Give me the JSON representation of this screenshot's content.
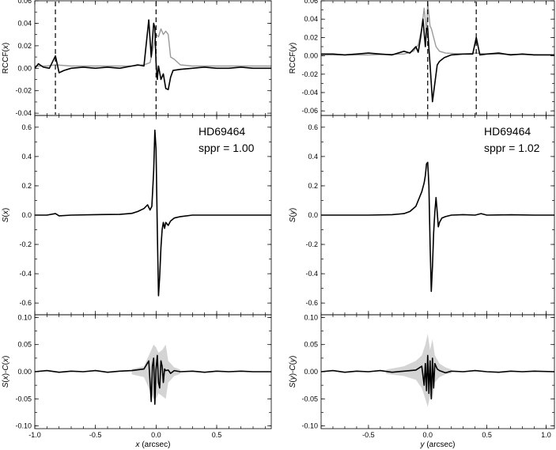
{
  "colors": {
    "primary": "#000000",
    "reference": "#9a9a9a",
    "band": "#d4d4d4"
  },
  "chart_data": [
    {
      "type": "line",
      "panel": "top-left",
      "xlabel": "",
      "ylabel": "RCCF(x)",
      "xlim": [
        -1.0,
        0.95
      ],
      "ylim": [
        -0.042,
        0.06
      ],
      "yticks": [
        "-0.04",
        "-0.02",
        "0.00",
        "0.02",
        "0.04",
        "0.06"
      ],
      "xticks": [],
      "vlines": [
        -0.83,
        0.0
      ],
      "series": [
        {
          "style": "reference",
          "x": [
            -1.0,
            -0.9,
            -0.83,
            -0.7,
            -0.4,
            -0.2,
            -0.1,
            -0.05,
            -0.02,
            0.0,
            0.02,
            0.04,
            0.06,
            0.08,
            0.1,
            0.12,
            0.15,
            0.2,
            0.3,
            0.5,
            0.95
          ],
          "y": [
            0.002,
            0.002,
            0.003,
            0.002,
            0.002,
            0.002,
            0.003,
            0.005,
            0.02,
            0.03,
            0.028,
            0.035,
            0.03,
            0.033,
            0.03,
            0.01,
            0.008,
            0.003,
            0.002,
            0.002,
            0.002
          ]
        },
        {
          "style": "primary",
          "x": [
            -1.0,
            -0.97,
            -0.93,
            -0.88,
            -0.83,
            -0.8,
            -0.76,
            -0.7,
            -0.6,
            -0.5,
            -0.4,
            -0.3,
            -0.2,
            -0.15,
            -0.1,
            -0.06,
            -0.04,
            -0.02,
            -0.01,
            0.0,
            0.01,
            0.02,
            0.04,
            0.06,
            0.08,
            0.1,
            0.12,
            0.14,
            0.2,
            0.3,
            0.4,
            0.5,
            0.6,
            0.7,
            0.8,
            0.95
          ],
          "y": [
            0.0,
            0.004,
            0.001,
            0.0,
            0.011,
            -0.004,
            -0.002,
            0.0,
            0.001,
            0.0,
            0.001,
            0.0,
            0.002,
            0.003,
            0.002,
            0.043,
            0.01,
            0.04,
            0.036,
            0.005,
            -0.01,
            0.002,
            -0.01,
            -0.005,
            -0.018,
            -0.019,
            -0.008,
            -0.002,
            -0.001,
            0.0,
            0.001,
            0.0,
            0.0,
            0.001,
            0.0,
            0.0
          ]
        }
      ]
    },
    {
      "type": "line",
      "panel": "top-right",
      "xlabel": "",
      "ylabel": "RCCF(y)",
      "xlim": [
        -0.9,
        1.07
      ],
      "ylim": [
        -0.065,
        0.06
      ],
      "yticks": [
        "-0.06",
        "-0.04",
        "-0.02",
        "0.00",
        "0.02",
        "0.04",
        "0.06"
      ],
      "xticks": [],
      "vlines": [
        0.0,
        0.41
      ],
      "series": [
        {
          "style": "reference",
          "x": [
            -0.9,
            -0.5,
            -0.2,
            -0.12,
            -0.08,
            -0.05,
            -0.03,
            -0.01,
            0.0,
            0.02,
            0.03,
            0.05,
            0.07,
            0.1,
            0.15,
            0.3,
            0.41,
            0.5,
            1.07
          ],
          "y": [
            0.001,
            0.001,
            0.002,
            0.005,
            0.012,
            0.03,
            0.052,
            0.025,
            0.058,
            0.032,
            0.03,
            0.02,
            0.01,
            0.005,
            0.003,
            0.002,
            0.003,
            0.002,
            0.001
          ]
        },
        {
          "style": "primary",
          "x": [
            -0.9,
            -0.8,
            -0.7,
            -0.6,
            -0.5,
            -0.4,
            -0.3,
            -0.2,
            -0.15,
            -0.1,
            -0.08,
            -0.06,
            -0.04,
            -0.02,
            -0.01,
            0.0,
            0.01,
            0.02,
            0.04,
            0.06,
            0.08,
            0.1,
            0.14,
            0.2,
            0.3,
            0.38,
            0.41,
            0.44,
            0.5,
            0.6,
            0.7,
            0.8,
            0.9,
            1.07
          ],
          "y": [
            0.002,
            0.002,
            0.001,
            0.002,
            0.003,
            0.002,
            0.001,
            0.005,
            0.003,
            0.01,
            0.004,
            0.02,
            0.04,
            0.01,
            0.03,
            0.03,
            0.008,
            -0.01,
            -0.05,
            -0.03,
            -0.01,
            -0.006,
            -0.002,
            0.001,
            0.002,
            0.002,
            0.02,
            0.001,
            0.002,
            0.003,
            0.001,
            0.002,
            0.001,
            0.001
          ]
        }
      ]
    },
    {
      "type": "line",
      "panel": "middle-left",
      "xlabel": "",
      "ylabel": "S(x)",
      "xlim": [
        -1.0,
        0.95
      ],
      "ylim": [
        -0.68,
        0.68
      ],
      "yticks": [
        "-0.6",
        "-0.4",
        "-0.2",
        "0.0",
        "0.2",
        "0.4",
        "0.6"
      ],
      "xticks": [],
      "annotation": [
        "HD69464",
        "sppr = 1.00"
      ],
      "series": [
        {
          "style": "primary",
          "x": [
            -1.0,
            -0.9,
            -0.83,
            -0.8,
            -0.7,
            -0.5,
            -0.3,
            -0.2,
            -0.15,
            -0.1,
            -0.07,
            -0.05,
            -0.035,
            -0.02,
            -0.01,
            0.0,
            0.01,
            0.02,
            0.03,
            0.04,
            0.05,
            0.06,
            0.07,
            0.08,
            0.1,
            0.12,
            0.15,
            0.2,
            0.3,
            0.5,
            0.7,
            0.95
          ],
          "y": [
            0.0,
            0.0,
            0.01,
            -0.005,
            0.0,
            0.003,
            0.005,
            0.012,
            0.025,
            0.045,
            0.07,
            0.035,
            0.06,
            0.3,
            0.58,
            0.45,
            -0.1,
            -0.55,
            -0.42,
            -0.22,
            -0.1,
            -0.05,
            -0.09,
            -0.05,
            -0.07,
            -0.04,
            -0.02,
            -0.01,
            0.0,
            0.0,
            0.0,
            0.0
          ]
        }
      ]
    },
    {
      "type": "line",
      "panel": "middle-right",
      "xlabel": "",
      "ylabel": "S(y)",
      "xlim": [
        -0.9,
        1.07
      ],
      "ylim": [
        -0.68,
        0.68
      ],
      "yticks": [
        "-0.6",
        "-0.4",
        "-0.2",
        "0.0",
        "0.2",
        "0.4",
        "0.6"
      ],
      "xticks": [],
      "annotation": [
        "HD69464",
        "sppr = 1.02"
      ],
      "series": [
        {
          "style": "primary",
          "x": [
            -0.9,
            -0.7,
            -0.5,
            -0.3,
            -0.2,
            -0.15,
            -0.1,
            -0.07,
            -0.05,
            -0.03,
            -0.02,
            -0.01,
            0.0,
            0.01,
            0.02,
            0.03,
            0.04,
            0.05,
            0.06,
            0.07,
            0.08,
            0.09,
            0.1,
            0.12,
            0.15,
            0.2,
            0.3,
            0.4,
            0.45,
            0.5,
            0.7,
            0.9,
            1.07
          ],
          "y": [
            0.0,
            0.0,
            0.0,
            0.003,
            0.01,
            0.025,
            0.06,
            0.12,
            0.16,
            0.22,
            0.27,
            0.35,
            0.36,
            0.2,
            -0.2,
            -0.52,
            -0.35,
            -0.12,
            0.02,
            0.12,
            0.02,
            -0.08,
            -0.05,
            -0.02,
            -0.01,
            0.0,
            0.003,
            0.0,
            0.01,
            0.0,
            0.002,
            0.0,
            0.0
          ]
        }
      ]
    },
    {
      "type": "line",
      "panel": "bottom-left",
      "xlabel": "x (arcsec)",
      "ylabel": "S(x)-C(x)",
      "xlim": [
        -1.0,
        0.95
      ],
      "ylim": [
        -0.105,
        0.105
      ],
      "yticks": [
        "-0.10",
        "-0.05",
        "0.00",
        "0.05",
        "0.10"
      ],
      "xticks": [
        "-1.0",
        "-0.5",
        "0.0",
        "0.5"
      ],
      "band": {
        "x": [
          -0.2,
          -0.1,
          -0.05,
          -0.02,
          0.0,
          0.02,
          0.05,
          0.08,
          0.1,
          0.15,
          0.2
        ],
        "upper": [
          0.005,
          0.01,
          0.035,
          0.05,
          0.045,
          0.035,
          0.04,
          0.05,
          0.02,
          0.008,
          0.004
        ],
        "lower": [
          -0.005,
          -0.01,
          -0.035,
          -0.05,
          -0.05,
          -0.04,
          -0.045,
          -0.05,
          -0.02,
          -0.008,
          -0.004
        ]
      },
      "series": [
        {
          "style": "primary",
          "x": [
            -1.0,
            -0.9,
            -0.8,
            -0.7,
            -0.6,
            -0.5,
            -0.4,
            -0.3,
            -0.2,
            -0.1,
            -0.06,
            -0.04,
            -0.03,
            -0.02,
            -0.01,
            0.0,
            0.01,
            0.02,
            0.03,
            0.04,
            0.05,
            0.06,
            0.07,
            0.08,
            0.1,
            0.12,
            0.15,
            0.2,
            0.3,
            0.4,
            0.5,
            0.6,
            0.7,
            0.8,
            0.95
          ],
          "y": [
            0.0,
            0.002,
            -0.001,
            0.001,
            0.0,
            0.002,
            -0.001,
            0.001,
            0.002,
            0.005,
            0.02,
            -0.055,
            0.01,
            0.025,
            -0.06,
            0.005,
            0.03,
            -0.02,
            -0.03,
            0.02,
            0.01,
            -0.02,
            0.005,
            0.002,
            0.003,
            -0.003,
            0.002,
            0.0,
            0.001,
            -0.001,
            0.001,
            0.0,
            0.001,
            0.0,
            0.0
          ]
        }
      ]
    },
    {
      "type": "line",
      "panel": "bottom-right",
      "xlabel": "y (arcsec)",
      "ylabel": "S(y)-C(y)",
      "xlim": [
        -0.9,
        1.07
      ],
      "ylim": [
        -0.105,
        0.105
      ],
      "yticks": [
        "-0.10",
        "-0.05",
        "0.00",
        "0.05",
        "0.10"
      ],
      "xticks": [
        "-0.5",
        "0.0",
        "0.5",
        "1.0"
      ],
      "band": {
        "x": [
          -0.35,
          -0.2,
          -0.1,
          -0.05,
          -0.02,
          0.0,
          0.02,
          0.04,
          0.06,
          0.1,
          0.15,
          0.2
        ],
        "upper": [
          0.004,
          0.01,
          0.02,
          0.03,
          0.05,
          0.07,
          0.04,
          0.06,
          0.03,
          0.015,
          0.008,
          0.004
        ],
        "lower": [
          -0.004,
          -0.008,
          -0.015,
          -0.03,
          -0.05,
          -0.065,
          -0.045,
          -0.05,
          -0.02,
          -0.01,
          -0.005,
          -0.003
        ]
      },
      "series": [
        {
          "style": "primary",
          "x": [
            -0.9,
            -0.8,
            -0.7,
            -0.6,
            -0.5,
            -0.4,
            -0.3,
            -0.2,
            -0.1,
            -0.05,
            -0.03,
            -0.02,
            -0.01,
            0.0,
            0.01,
            0.02,
            0.03,
            0.04,
            0.05,
            0.06,
            0.08,
            0.1,
            0.15,
            0.2,
            0.3,
            0.4,
            0.5,
            0.6,
            0.7,
            0.8,
            0.9,
            1.07
          ],
          "y": [
            0.0,
            0.002,
            -0.001,
            0.001,
            0.0,
            0.002,
            -0.001,
            0.001,
            0.003,
            0.01,
            -0.025,
            0.015,
            -0.035,
            0.03,
            -0.04,
            0.02,
            -0.05,
            0.025,
            -0.03,
            0.015,
            0.005,
            0.002,
            -0.002,
            0.001,
            0.0,
            0.002,
            0.0,
            -0.001,
            0.001,
            0.0,
            0.001,
            0.0
          ]
        }
      ]
    }
  ]
}
